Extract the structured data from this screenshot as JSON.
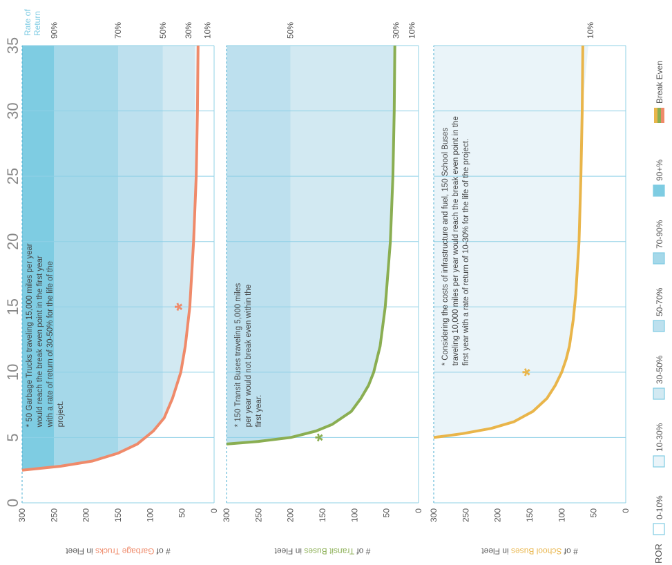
{
  "colors": {
    "band_10_30": "#eaf4f9",
    "band_30_50": "#d2e9f2",
    "band_50_70": "#bde0ee",
    "band_70_90": "#a5d8e9",
    "band_90_plus": "#7ecce2",
    "school": "#e9b54a",
    "transit": "#8aae52",
    "garbage": "#ef8a6a",
    "grid": "#8fd0e6",
    "axis_text": "#555555",
    "ror_title": "#7ecbe3"
  },
  "legend": {
    "label": "ROR",
    "items": [
      {
        "label": "0-10%",
        "color": "#ffffff"
      },
      {
        "label": "10-30%",
        "color": "#eaf4f9"
      },
      {
        "label": "30-50%",
        "color": "#d2e9f2"
      },
      {
        "label": "50-70%",
        "color": "#bde0ee"
      },
      {
        "label": "70-90%",
        "color": "#a5d8e9"
      },
      {
        "label": "90+%",
        "color": "#7ecce2"
      }
    ],
    "break_even": "Break Even",
    "rate_of_return_title": "Rate of Return"
  },
  "chart_data": [
    {
      "type": "line",
      "id": "school",
      "ylabel_prefix": "# of ",
      "ylabel_vehicle": "School Buses",
      "ylabel_suffix": " in Fleet",
      "xlim": [
        0,
        35
      ],
      "ylim": [
        0,
        300
      ],
      "yticks": [
        "300",
        "250",
        "200",
        "150",
        "100",
        "50",
        "0"
      ],
      "series": [
        {
          "x": [
            5.0,
            5.3,
            5.7,
            6.2,
            7,
            8,
            9,
            10,
            11,
            12,
            14,
            16,
            20,
            25,
            30,
            35
          ],
          "y": [
            300,
            255,
            210,
            175,
            145,
            123,
            110,
            100,
            93,
            88,
            82,
            78,
            73,
            70,
            68,
            67
          ]
        }
      ],
      "bands": [
        {
          "range": [
            0,
            10
          ],
          "ror": "0-10%"
        },
        {
          "range": [
            10,
            300
          ],
          "ror": "10-30%"
        }
      ],
      "ror_labels": [
        "10%"
      ],
      "marker": {
        "x": 10,
        "y": 150
      },
      "annotation": "Considering the costs of infrastructure and fuel, 150 School Buses traveling 10,000 miles per year would reach the break even point in the first year with a rate of return of 10-30% for the life of the project."
    },
    {
      "type": "line",
      "id": "transit",
      "ylabel_prefix": "# of ",
      "ylabel_vehicle": "Transit Buses",
      "ylabel_suffix": " in Fleet",
      "xlim": [
        0,
        35
      ],
      "ylim": [
        0,
        300
      ],
      "yticks": [
        "300",
        "250",
        "200",
        "150",
        "100",
        "50",
        "0"
      ],
      "series": [
        {
          "x": [
            4.5,
            4.7,
            5,
            5.5,
            6,
            7,
            8,
            9,
            10,
            12,
            15,
            20,
            25,
            30,
            35
          ],
          "y": [
            300,
            250,
            200,
            160,
            135,
            105,
            90,
            78,
            70,
            60,
            52,
            44,
            40,
            38,
            37
          ]
        }
      ],
      "bands": [
        {
          "range": [
            0,
            10
          ],
          "ror": "0-10%"
        },
        {
          "range": [
            10,
            30
          ],
          "ror": "10-30%"
        },
        {
          "range": [
            30,
            200
          ],
          "ror": "30-50%"
        },
        {
          "range": [
            200,
            300
          ],
          "ror": "50-70%"
        }
      ],
      "ror_labels": [
        "50%",
        "30%",
        "10%"
      ],
      "marker": {
        "x": 5,
        "y": 150
      },
      "annotation": "150 Transit Buses traveling 5,000 miles per year would not break even within the first year."
    },
    {
      "type": "line",
      "id": "garbage",
      "ylabel_prefix": "# of ",
      "ylabel_vehicle": "Garbage Trucks",
      "ylabel_suffix": " in Fleet",
      "xlim": [
        0,
        35
      ],
      "ylim": [
        0,
        300
      ],
      "yticks": [
        "300",
        "250",
        "200",
        "150",
        "100",
        "50",
        "0"
      ],
      "series": [
        {
          "x": [
            2.5,
            2.8,
            3.2,
            3.8,
            4.5,
            5.5,
            6.5,
            8,
            10,
            12,
            15,
            20,
            25,
            30,
            35
          ],
          "y": [
            300,
            240,
            190,
            150,
            120,
            95,
            78,
            65,
            52,
            45,
            38,
            32,
            28,
            26,
            25
          ]
        }
      ],
      "bands": [
        {
          "range": [
            0,
            10
          ],
          "ror": "0-10%"
        },
        {
          "range": [
            10,
            30
          ],
          "ror": "10-30%"
        },
        {
          "range": [
            30,
            80
          ],
          "ror": "30-50%"
        },
        {
          "range": [
            80,
            150
          ],
          "ror": "50-70%"
        },
        {
          "range": [
            150,
            250
          ],
          "ror": "70-90%"
        },
        {
          "range": [
            250,
            300
          ],
          "ror": "90+%"
        }
      ],
      "ror_labels": [
        "90%",
        "70%",
        "50%",
        "30%",
        "10%"
      ],
      "marker": {
        "x": 15,
        "y": 50
      },
      "annotation": "50 Garbage Trucks traveling 15,000 miles per year would reach the break even point in the first year with a rate of return of 30-50% for the life of the project."
    }
  ],
  "xticks": [
    "0",
    "5",
    "10",
    "15",
    "20",
    "25",
    "30",
    "35"
  ]
}
